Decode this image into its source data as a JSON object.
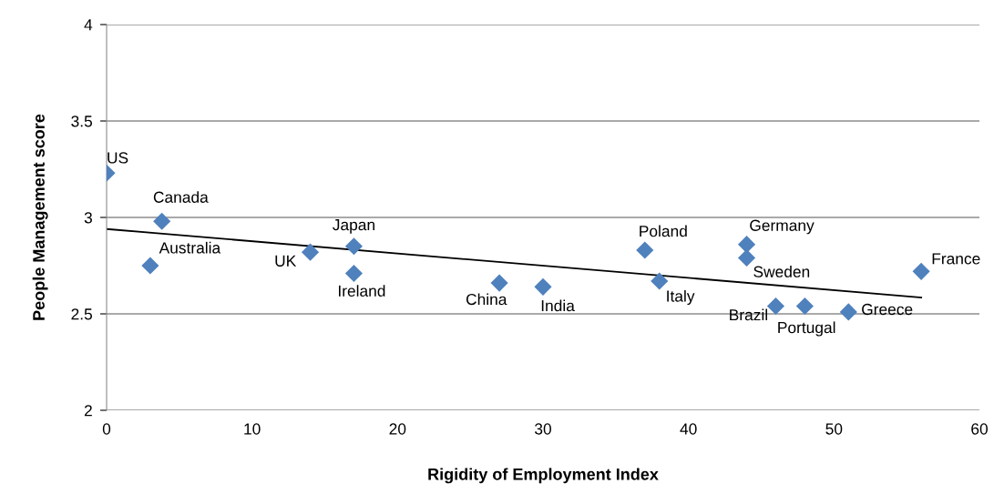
{
  "chart_data": {
    "type": "scatter",
    "xlabel": "Rigidity of Employment Index",
    "ylabel": "People Management score",
    "xlim": [
      0,
      60
    ],
    "xticks": [
      0,
      10,
      20,
      30,
      40,
      50,
      60
    ],
    "ylim": [
      2,
      4
    ],
    "yticks": [
      2,
      2.5,
      3,
      3.5,
      4
    ],
    "grid": "y",
    "marker": "diamond",
    "series": [
      {
        "color": "#4f81bd",
        "x": [
          0,
          3.8,
          3,
          14,
          17,
          17,
          27,
          30,
          37,
          38,
          44,
          44,
          46,
          48,
          51,
          56
        ],
        "values": [
          3.23,
          2.98,
          2.75,
          2.82,
          2.85,
          2.71,
          2.66,
          2.64,
          2.83,
          2.67,
          2.86,
          2.79,
          2.54,
          2.54,
          2.51,
          2.72
        ]
      },
      {
        "type": "line",
        "marker": "none",
        "color": "#000000",
        "x": [
          0,
          56
        ],
        "values": [
          2.94,
          2.585
        ]
      }
    ],
    "annotations": [
      {
        "text": "US",
        "x": 0,
        "y": 3.23
      },
      {
        "text": "Canada",
        "x": 3.8,
        "y": 2.98
      },
      {
        "text": "Australia",
        "x": 3,
        "y": 2.75
      },
      {
        "text": "UK",
        "x": 14,
        "y": 2.82
      },
      {
        "text": "Japan",
        "x": 17,
        "y": 2.85
      },
      {
        "text": "Ireland",
        "x": 17,
        "y": 2.71
      },
      {
        "text": "China",
        "x": 27,
        "y": 2.66
      },
      {
        "text": "India",
        "x": 30,
        "y": 2.64
      },
      {
        "text": "Poland",
        "x": 37,
        "y": 2.83
      },
      {
        "text": "Italy",
        "x": 38,
        "y": 2.67
      },
      {
        "text": "Germany",
        "x": 44,
        "y": 2.86
      },
      {
        "text": "Sweden",
        "x": 44,
        "y": 2.79
      },
      {
        "text": "Brazil",
        "x": 46,
        "y": 2.54
      },
      {
        "text": "Portugal",
        "x": 48,
        "y": 2.54
      },
      {
        "text": "Greece",
        "x": 51,
        "y": 2.51
      },
      {
        "text": "France",
        "x": 56,
        "y": 2.72
      }
    ]
  }
}
